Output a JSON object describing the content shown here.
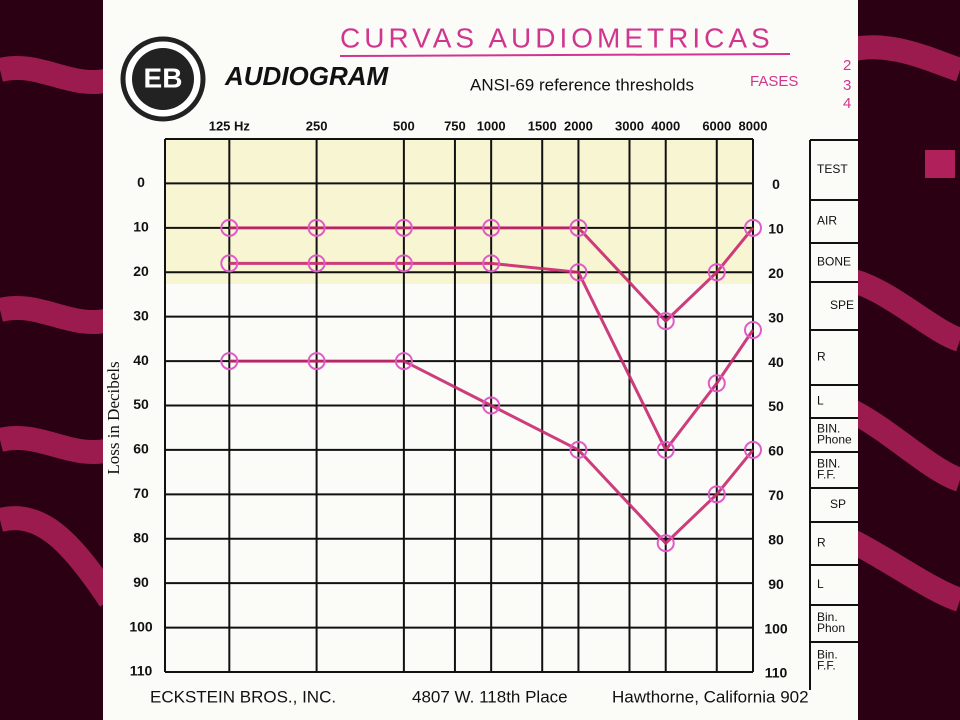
{
  "chart_data": {
    "type": "line",
    "handwritten_title": "CURVAS AUDIOMETRICAS",
    "logo": "EB",
    "title": "AUDIOGRAM",
    "subtitle": "ANSI-69 reference thresholds",
    "handwritten_note": "FASES",
    "handwritten_numbers": [
      "2",
      "3",
      "4"
    ],
    "y_label": "Loss in Decibels",
    "x": [
      125,
      250,
      500,
      1000,
      2000,
      4000,
      6000,
      8000
    ],
    "xlim": [
      75,
      8000
    ],
    "xticks": [
      {
        "value": 125,
        "label": "125 Hz"
      },
      250,
      500,
      750,
      1000,
      1500,
      2000,
      3000,
      4000,
      6000,
      8000
    ],
    "log_x": true,
    "ylim": [
      -10,
      110
    ],
    "yticks": [
      0,
      10,
      20,
      30,
      40,
      50,
      60,
      70,
      80,
      90,
      100,
      110
    ],
    "y_inverted": true,
    "grid": true,
    "marker_color": "#e05ac8",
    "series": [
      {
        "color": "#c8286e",
        "values": [
          10,
          10,
          10,
          10,
          10,
          31,
          20,
          10
        ]
      },
      {
        "color": "#c8286e",
        "values": [
          18,
          18,
          18,
          18,
          20,
          60,
          45,
          33
        ]
      },
      {
        "color": "#c8286e",
        "values": [
          40,
          40,
          40,
          50,
          60,
          81,
          70,
          60
        ]
      }
    ],
    "side_table": [
      [
        "TEST"
      ],
      [
        "AIR"
      ],
      [
        "BONE"
      ],
      [
        "SPE"
      ],
      [
        "R"
      ],
      [
        "L"
      ],
      [
        "BIN.",
        "Phone"
      ],
      [
        "BIN.",
        "F.F."
      ],
      [
        "SP"
      ],
      [
        "R"
      ],
      [
        "L"
      ],
      [
        "Bin.",
        "Phon"
      ],
      [
        "Bin.",
        "F.F."
      ]
    ],
    "footer": [
      "ECKSTEIN BROS., INC.",
      "4807 W. 118th Place",
      "Hawthorne, California 902"
    ]
  }
}
